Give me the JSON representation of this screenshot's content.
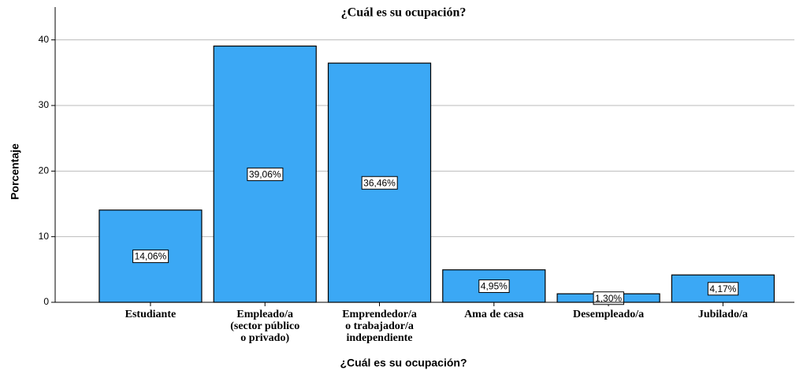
{
  "chart_data": {
    "type": "bar",
    "title": "¿Cuál es su ocupación?",
    "x_label": "¿Cuál es su ocupación?",
    "y_label": "Porcentaje",
    "categories": [
      "Estudiante",
      "Empleado/a\n(sector público\no privado)",
      "Emprendedor/a\no trabajador/a\nindependiente",
      "Ama de casa",
      "Desempleado/a",
      "Jubilado/a"
    ],
    "values": [
      14.06,
      39.06,
      36.46,
      4.95,
      1.3,
      4.17
    ],
    "value_labels": [
      "14,06%",
      "39,06%",
      "36,46%",
      "4,95%",
      "1,30%",
      "4,17%"
    ],
    "color": "#3ba8f5",
    "ylim": [
      0,
      45
    ],
    "yticks": [
      0,
      10,
      20,
      30,
      40
    ],
    "grid": true
  }
}
